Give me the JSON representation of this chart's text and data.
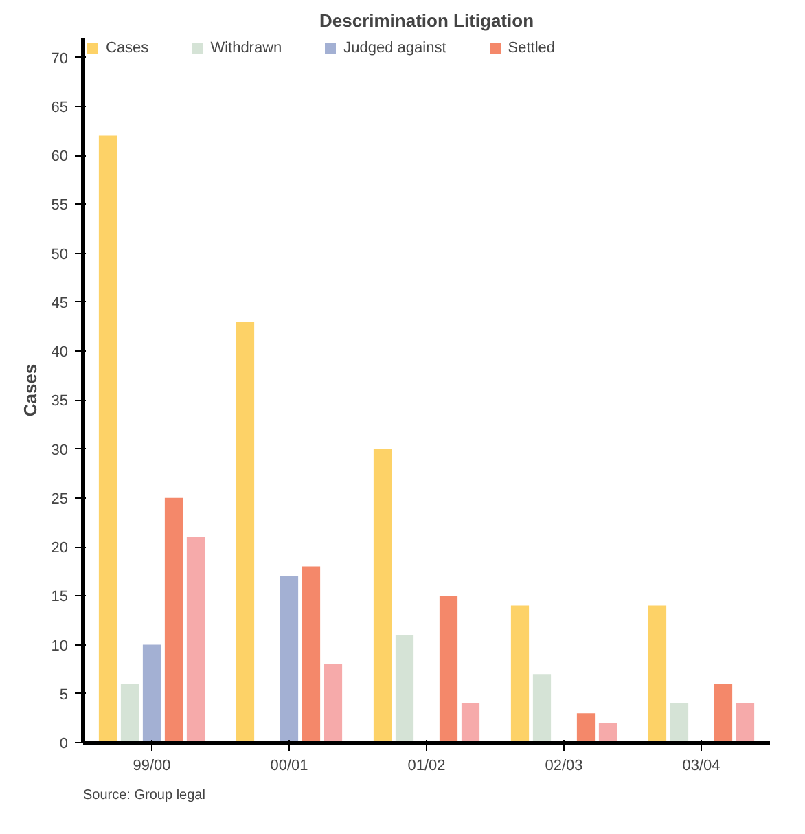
{
  "chart_data": {
    "type": "bar",
    "title": "Descrimination Litigation",
    "ylabel": "Cases",
    "categories": [
      "99/00",
      "00/01",
      "01/02",
      "02/03",
      "03/04"
    ],
    "series": [
      {
        "name": "Cases",
        "color": "#fdd267",
        "values": [
          62,
          43,
          30,
          14,
          14
        ]
      },
      {
        "name": "Withdrawn",
        "color": "#d5e3d6",
        "values": [
          6,
          null,
          11,
          7,
          4
        ]
      },
      {
        "name": "Judged against",
        "color": "#a3b0d3",
        "values": [
          10,
          17,
          null,
          null,
          null
        ]
      },
      {
        "name": "Settled",
        "color": "#f4886a",
        "values": [
          25,
          18,
          15,
          3,
          6
        ]
      },
      {
        "color": "#f6aaaa",
        "values": [
          21,
          8,
          4,
          2,
          4
        ]
      }
    ],
    "ylim": [
      0,
      72
    ],
    "yticks": [
      0,
      5,
      10,
      15,
      20,
      25,
      30,
      35,
      40,
      45,
      50,
      55,
      60,
      65,
      70
    ],
    "grid": false,
    "legend": "top",
    "annotations": [
      "Source: Group legal"
    ]
  }
}
